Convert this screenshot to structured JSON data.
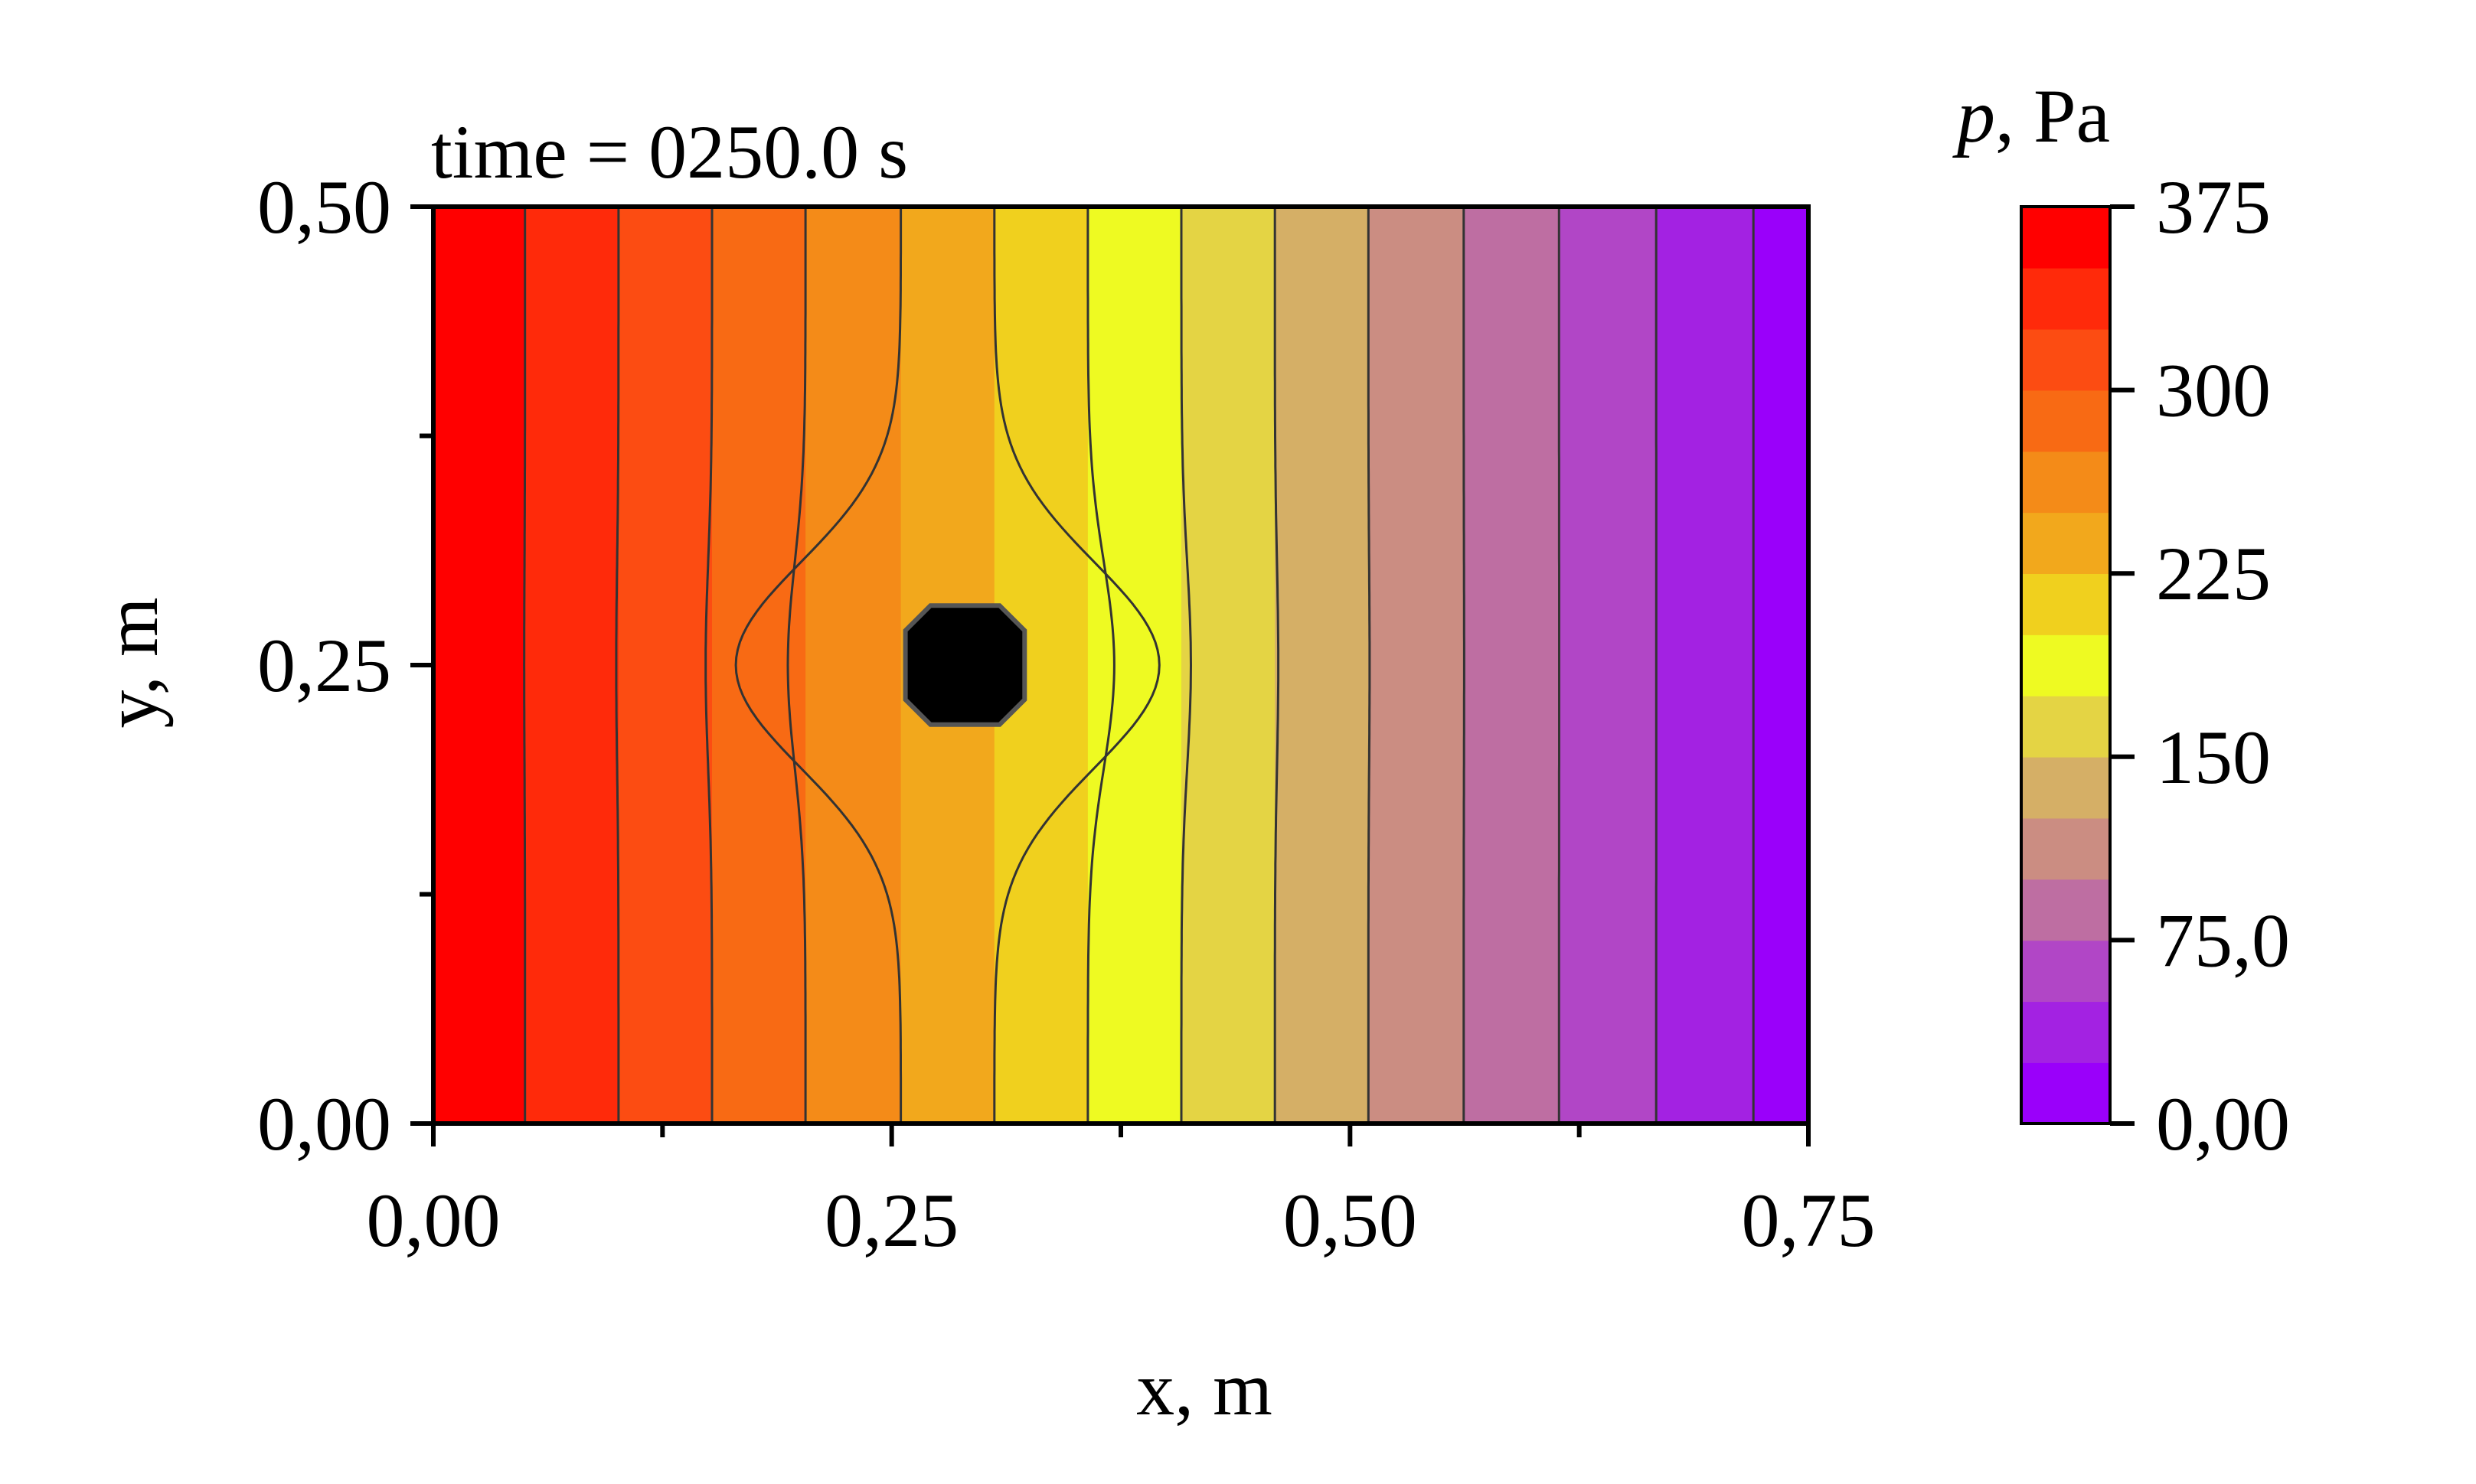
{
  "chart_data": {
    "type": "heatmap",
    "title": "time = 0250.0 s",
    "xlabel": "x, m",
    "ylabel": "y, m",
    "xlim": [
      0,
      0.75
    ],
    "ylim": [
      0,
      0.5
    ],
    "x_ticks": [
      "0,00",
      "0,25",
      "0,50",
      "0,75"
    ],
    "y_ticks": [
      "0,00",
      "0,25",
      "0,50"
    ],
    "x_tick_values": [
      0,
      0.25,
      0.5,
      0.75
    ],
    "y_tick_values": [
      0,
      0.25,
      0.5
    ],
    "obstacle": {
      "center": [
        0.29,
        0.25
      ],
      "size": 0.065,
      "color": "#000000"
    },
    "bands": [
      {
        "x_start": 0.0,
        "x_end": 0.05,
        "color": "#ff0000"
      },
      {
        "x_start": 0.05,
        "x_end": 0.101,
        "color": "#ff2a0a"
      },
      {
        "x_start": 0.101,
        "x_end": 0.152,
        "color": "#fc4c12"
      },
      {
        "x_start": 0.152,
        "x_end": 0.203,
        "color": "#f86a14"
      },
      {
        "x_start": 0.203,
        "x_end": 0.255,
        "color": "#f48b18"
      },
      {
        "x_start": 0.255,
        "x_end": 0.306,
        "color": "#f2a81c"
      },
      {
        "x_start": 0.306,
        "x_end": 0.357,
        "color": "#f0d01e"
      },
      {
        "x_start": 0.357,
        "x_end": 0.408,
        "color": "#eefa22"
      },
      {
        "x_start": 0.408,
        "x_end": 0.459,
        "color": "#e4d444"
      },
      {
        "x_start": 0.459,
        "x_end": 0.51,
        "color": "#d5af66"
      },
      {
        "x_start": 0.51,
        "x_end": 0.562,
        "color": "#cb8d82"
      },
      {
        "x_start": 0.562,
        "x_end": 0.614,
        "color": "#be6ea2"
      },
      {
        "x_start": 0.614,
        "x_end": 0.667,
        "color": "#b146c6"
      },
      {
        "x_start": 0.667,
        "x_end": 0.72,
        "color": "#a322e2"
      },
      {
        "x_start": 0.72,
        "x_end": 0.75,
        "color": "#9a00fa"
      }
    ],
    "contour_levels_x": [
      0.05,
      0.101,
      0.152,
      0.203,
      0.255,
      0.306,
      0.357,
      0.408,
      0.459,
      0.51,
      0.562,
      0.614,
      0.667,
      0.72
    ],
    "colorbar": {
      "title_var": "p",
      "title_unit": ", Pa",
      "min": 0,
      "max": 375,
      "ticks": [
        {
          "value": 375,
          "label": "375"
        },
        {
          "value": 300,
          "label": "300"
        },
        {
          "value": 225,
          "label": "225"
        },
        {
          "value": 150,
          "label": "150"
        },
        {
          "value": 75,
          "label": "75,0"
        },
        {
          "value": 0,
          "label": "0,00"
        }
      ],
      "colors": [
        "#9a00fa",
        "#a322e2",
        "#b146c6",
        "#be6ea2",
        "#cb8d82",
        "#d5af66",
        "#e4d444",
        "#eefa22",
        "#f0d01e",
        "#f2a81c",
        "#f48b18",
        "#f86a14",
        "#fc4c12",
        "#ff2a0a",
        "#ff0000"
      ]
    }
  }
}
